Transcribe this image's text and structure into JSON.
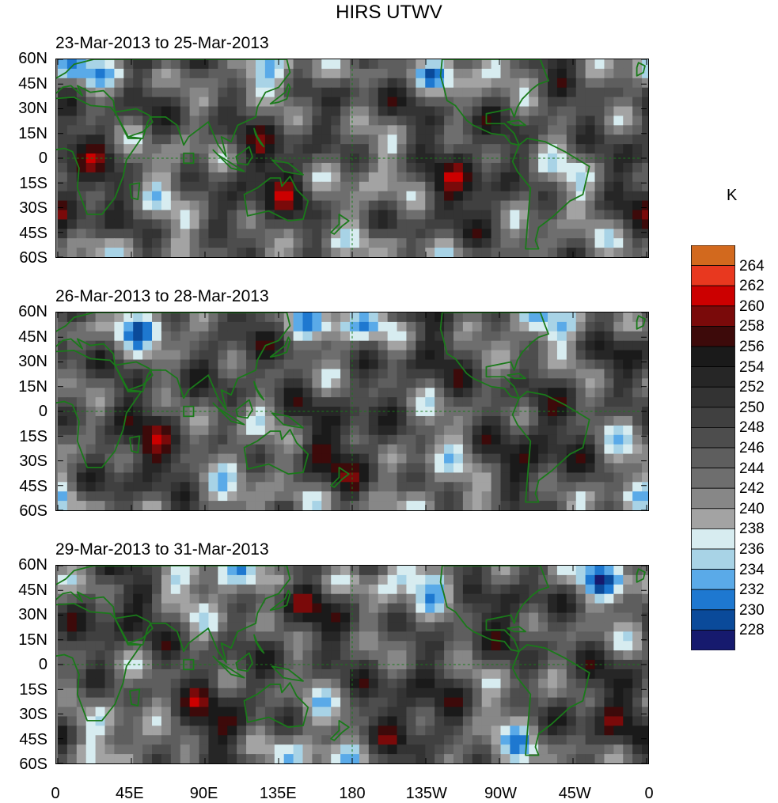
{
  "title": "HIRS UTWV",
  "panels": [
    {
      "subtitle": "23-Mar-2013 to 25-Mar-2013"
    },
    {
      "subtitle": "26-Mar-2013 to 28-Mar-2013"
    },
    {
      "subtitle": "29-Mar-2013 to 31-Mar-2013"
    }
  ],
  "lat_labels": [
    "60N",
    "45N",
    "30N",
    "15N",
    "0",
    "15S",
    "30S",
    "45S",
    "60S"
  ],
  "lon_labels": [
    "0",
    "45E",
    "90E",
    "135E",
    "180",
    "135W",
    "90W",
    "45W",
    "0"
  ],
  "colorbar": {
    "unit": "K",
    "labels": [
      "264",
      "262",
      "260",
      "258",
      "256",
      "254",
      "252",
      "250",
      "248",
      "246",
      "244",
      "242",
      "240",
      "238",
      "236",
      "234",
      "232",
      "230",
      "228"
    ],
    "colors": [
      "#d2691e",
      "#e8381f",
      "#cc0000",
      "#7a0a0a",
      "#3d0a0a",
      "#1a1a1a",
      "#262626",
      "#333333",
      "#404040",
      "#4d4d4d",
      "#5e5e5e",
      "#6e6e6e",
      "#878787",
      "#a3a3a3",
      "#d7ecf0",
      "#a8d3e6",
      "#5aaae8",
      "#1e78d0",
      "#0a4a9a",
      "#161a6e"
    ]
  },
  "colors": {
    "coastline": "#1a7a1a",
    "gridline": "#1a7a1a"
  }
}
